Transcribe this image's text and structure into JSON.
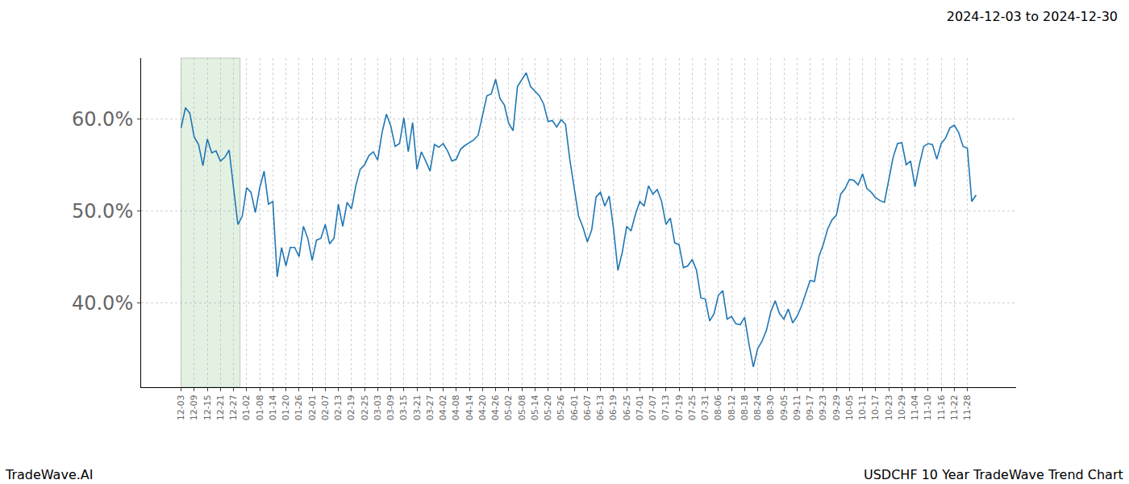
{
  "chart_data": {
    "type": "line",
    "title": "2024-12-03 to 2024-12-30",
    "annotations": [
      {
        "text": "TradeWave.AI"
      },
      {
        "text": "USDCHF 10 Year TradeWave Trend Chart"
      }
    ],
    "categories": [
      "12-03",
      null,
      null,
      "12-09",
      null,
      null,
      "12-15",
      null,
      null,
      "12-21",
      null,
      null,
      "12-27",
      null,
      null,
      "01-02",
      null,
      null,
      "01-08",
      null,
      null,
      "01-14",
      null,
      null,
      "01-20",
      null,
      null,
      "01-26",
      null,
      null,
      "02-01",
      null,
      null,
      "02-07",
      null,
      null,
      "02-13",
      null,
      null,
      "02-19",
      null,
      null,
      "02-25",
      null,
      null,
      "03-03",
      null,
      null,
      "03-09",
      null,
      null,
      "03-15",
      null,
      null,
      "03-21",
      null,
      null,
      "03-27",
      null,
      null,
      "04-02",
      null,
      null,
      "04-08",
      null,
      null,
      "04-14",
      null,
      null,
      "04-20",
      null,
      null,
      "04-26",
      null,
      null,
      "05-02",
      null,
      null,
      "05-08",
      null,
      null,
      "05-14",
      null,
      null,
      "05-20",
      null,
      null,
      "05-26",
      null,
      null,
      "06-01",
      null,
      null,
      "06-07",
      null,
      null,
      "06-13",
      null,
      null,
      "06-19",
      null,
      null,
      "06-25",
      null,
      null,
      "07-01",
      null,
      null,
      "07-07",
      null,
      null,
      "07-13",
      null,
      null,
      "07-19",
      null,
      null,
      "07-25",
      null,
      null,
      "07-31",
      null,
      null,
      "08-06",
      null,
      null,
      "08-12",
      null,
      null,
      "08-18",
      null,
      null,
      "08-24",
      null,
      null,
      "08-30",
      null,
      null,
      "09-05",
      null,
      null,
      "09-11",
      null,
      null,
      "09-17",
      null,
      null,
      "09-23",
      null,
      null,
      "09-29",
      null,
      null,
      "10-05",
      null,
      null,
      "10-11",
      null,
      null,
      "10-17",
      null,
      null,
      "10-23",
      null,
      null,
      "10-29",
      null,
      null,
      "11-04",
      null,
      null,
      "11-10",
      null,
      null,
      "11-16",
      null,
      null,
      "11-22",
      null,
      null,
      "11-28",
      null,
      null
    ],
    "values": [
      59.0,
      61.2,
      60.6,
      58.0,
      57.2,
      54.9,
      57.8,
      56.3,
      56.5,
      55.4,
      55.8,
      56.6,
      52.5,
      48.5,
      49.4,
      52.5,
      52.0,
      49.8,
      52.5,
      54.3,
      50.7,
      51.0,
      42.8,
      46.0,
      44.0,
      46.0,
      46.0,
      45.0,
      48.3,
      47.0,
      44.6,
      46.8,
      47.0,
      48.5,
      46.4,
      47.0,
      50.7,
      48.3,
      50.9,
      50.2,
      52.7,
      54.5,
      55.0,
      56.0,
      56.4,
      55.5,
      58.5,
      60.5,
      59.2,
      57.0,
      57.3,
      60.1,
      56.4,
      59.6,
      54.5,
      56.4,
      55.4,
      54.3,
      57.2,
      56.9,
      57.3,
      56.5,
      55.4,
      55.6,
      56.7,
      57.1,
      57.4,
      57.7,
      58.2,
      60.5,
      62.5,
      62.7,
      64.3,
      62.2,
      61.5,
      59.5,
      58.7,
      63.5,
      64.3,
      65.0,
      63.5,
      63.0,
      62.5,
      61.6,
      59.7,
      59.8,
      59.1,
      59.9,
      59.4,
      55.5,
      52.3,
      49.4,
      48.2,
      46.6,
      47.9,
      51.5,
      52.0,
      50.5,
      51.6,
      48.0,
      43.5,
      45.5,
      48.3,
      47.8,
      49.6,
      51.0,
      50.5,
      52.7,
      51.8,
      52.3,
      51.0,
      48.5,
      49.2,
      46.5,
      46.3,
      43.8,
      44.0,
      44.7,
      43.5,
      40.5,
      40.4,
      38.0,
      38.8,
      40.8,
      41.3,
      38.2,
      38.5,
      37.7,
      37.6,
      38.4,
      35.5,
      33.0,
      35.0,
      35.8,
      37.0,
      39.0,
      40.2,
      38.8,
      38.2,
      39.3,
      37.8,
      38.5,
      39.6,
      41.1,
      42.4,
      42.3,
      45.0,
      46.3,
      48.0,
      49.0,
      49.5,
      51.8,
      52.4,
      53.4,
      53.3,
      52.8,
      54.0,
      52.4,
      52.0,
      51.4,
      51.1,
      50.9,
      53.4,
      55.8,
      57.3,
      57.4,
      55.0,
      55.4,
      52.6,
      55.0,
      57.0,
      57.3,
      57.2,
      55.6,
      57.3,
      57.9,
      59.0,
      59.3,
      58.5,
      57.0,
      56.8,
      51.0,
      51.7
    ],
    "color": "#1f77b4",
    "highlight": [
      0,
      13.5
    ],
    "ylim": [
      30.8,
      66.6
    ],
    "yticks": [
      {
        "value": 40,
        "label": "40.0%"
      },
      {
        "value": 50,
        "label": "50.0%"
      },
      {
        "value": 60,
        "label": "60.0%"
      }
    ],
    "grid": true
  }
}
